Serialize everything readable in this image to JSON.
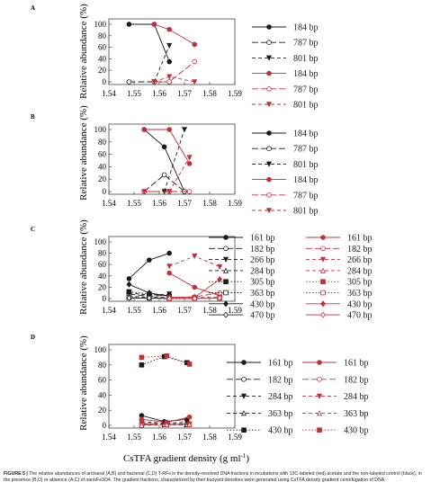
{
  "colors": {
    "black": "#1a1a1a",
    "red": "#c0303a",
    "darkred": "#8b1a1a",
    "grid": "#555555"
  },
  "axis": {
    "ylabel": "Relative abundance (%)",
    "xlabel": "CsTFA gradient density (g ml",
    "xlabel_sup": "-1",
    "xlabel_close": ")"
  },
  "caption": {
    "fig": "FIGURE 5 |",
    "text": "The relative abundances of archaeal (A,B) and bacterial (C,D) T-RFs in the density-resolved DNA fractions in incubations with 13C-labeled (red) acetate and the non-labeled control (black), in the presence (B,D) or absence (A,C) of nanoFe3O4. The gradient fractions, characterized by their buoyant densities were generated using CsTFA density gradient centrifugation of DNA."
  },
  "chart_data": [
    {
      "panel": "A",
      "type": "line",
      "xlim": [
        1.54,
        1.59
      ],
      "ylim": [
        0,
        100
      ],
      "xticks": [
        "1.54",
        "1.55",
        "1.56",
        "1.57",
        "1.58",
        "1.59"
      ],
      "yticks": [
        "0",
        "20",
        "40",
        "60",
        "80",
        "100"
      ],
      "series": [
        {
          "name": "184 bp",
          "color": "black",
          "dash": "solid",
          "marker": "circle-filled",
          "x": [
            1.548,
            1.558,
            1.564
          ],
          "y": [
            100,
            100,
            35
          ]
        },
        {
          "name": "787 bp",
          "color": "black",
          "dash": "longdash",
          "marker": "circle-open",
          "x": [
            1.548,
            1.558,
            1.564
          ],
          "y": [
            0,
            0,
            0
          ]
        },
        {
          "name": "801 bp",
          "color": "black",
          "dash": "dash",
          "marker": "tri-down",
          "x": [
            1.558,
            1.564
          ],
          "y": [
            0,
            63
          ]
        },
        {
          "name": "184 bp",
          "color": "red",
          "dash": "solid",
          "marker": "circle-filled",
          "x": [
            1.558,
            1.564,
            1.574
          ],
          "y": [
            100,
            91,
            65
          ]
        },
        {
          "name": "787 bp",
          "color": "red",
          "dash": "longdash",
          "marker": "circle-open",
          "x": [
            1.558,
            1.564,
            1.574
          ],
          "y": [
            0,
            0,
            35
          ]
        },
        {
          "name": "801 bp",
          "color": "red",
          "dash": "dash",
          "marker": "tri-down",
          "x": [
            1.558,
            1.564,
            1.574
          ],
          "y": [
            0,
            9,
            0
          ]
        }
      ]
    },
    {
      "panel": "B",
      "type": "line",
      "xlim": [
        1.54,
        1.59
      ],
      "ylim": [
        0,
        100
      ],
      "xticks": [
        "1.54",
        "1.55",
        "1.56",
        "1.57",
        "1.58",
        "1.59"
      ],
      "yticks": [
        "0",
        "20",
        "40",
        "60",
        "80",
        "100"
      ],
      "series": [
        {
          "name": "184 bp",
          "color": "black",
          "dash": "solid",
          "marker": "circle-filled",
          "x": [
            1.554,
            1.562,
            1.57
          ],
          "y": [
            100,
            72,
            0
          ]
        },
        {
          "name": "787 bp",
          "color": "black",
          "dash": "longdash",
          "marker": "circle-open",
          "x": [
            1.554,
            1.562,
            1.57
          ],
          "y": [
            0,
            27,
            0
          ]
        },
        {
          "name": "801 bp",
          "color": "black",
          "dash": "dash",
          "marker": "tri-down",
          "x": [
            1.562,
            1.57
          ],
          "y": [
            0,
            100
          ]
        },
        {
          "name": "184 bp",
          "color": "red",
          "dash": "solid",
          "marker": "circle-filled",
          "x": [
            1.554,
            1.564,
            1.572
          ],
          "y": [
            100,
            100,
            45
          ]
        },
        {
          "name": "787 bp",
          "color": "red",
          "dash": "longdash",
          "marker": "circle-open",
          "x": [
            1.554,
            1.564,
            1.572
          ],
          "y": [
            0,
            0,
            0
          ]
        },
        {
          "name": "801 bp",
          "color": "red",
          "dash": "dash",
          "marker": "tri-down",
          "x": [
            1.554,
            1.564,
            1.572
          ],
          "y": [
            0,
            0,
            55
          ]
        }
      ]
    },
    {
      "panel": "C",
      "type": "line",
      "xlim": [
        1.54,
        1.59
      ],
      "ylim": [
        0,
        100
      ],
      "xticks": [
        "1.54",
        "1.55",
        "1.56",
        "1.57",
        "1.58",
        "1.59"
      ],
      "yticks": [
        "0",
        "20",
        "40",
        "60",
        "80",
        "100"
      ],
      "series": [
        {
          "name": "161 bp",
          "color": "black",
          "dash": "solid",
          "marker": "circle-filled",
          "x": [
            1.548,
            1.556,
            1.564
          ],
          "y": [
            35,
            68,
            80
          ]
        },
        {
          "name": "182 bp",
          "color": "black",
          "dash": "longdash",
          "marker": "circle-open",
          "x": [
            1.548,
            1.556,
            1.564
          ],
          "y": [
            8,
            4,
            6
          ]
        },
        {
          "name": "266 bp",
          "color": "black",
          "dash": "dash",
          "marker": "tri-down",
          "x": [
            1.548,
            1.556,
            1.564
          ],
          "y": [
            10,
            6,
            8
          ]
        },
        {
          "name": "284 bp",
          "color": "black",
          "dash": "dash",
          "marker": "tri-up-open",
          "x": [
            1.548,
            1.556,
            1.564
          ],
          "y": [
            4,
            2,
            2
          ]
        },
        {
          "name": "305 bp",
          "color": "black",
          "dash": "dot",
          "marker": "square",
          "x": [
            1.548,
            1.556,
            1.564
          ],
          "y": [
            12,
            8,
            4
          ]
        },
        {
          "name": "363 bp",
          "color": "black",
          "dash": "dot",
          "marker": "square-open",
          "x": [
            1.548,
            1.556,
            1.564
          ],
          "y": [
            2,
            1,
            1
          ]
        },
        {
          "name": "430 bp",
          "color": "black",
          "dash": "solid",
          "marker": "diamond",
          "x": [
            1.548,
            1.556,
            1.564
          ],
          "y": [
            25,
            10,
            4
          ]
        },
        {
          "name": "470 bp",
          "color": "black",
          "dash": "solid",
          "marker": "diamond-open",
          "x": [
            1.548,
            1.556,
            1.564
          ],
          "y": [
            1,
            1,
            0
          ]
        },
        {
          "name": "161 bp",
          "color": "red",
          "dash": "solid",
          "marker": "circle-filled",
          "x": [
            1.564,
            1.574,
            1.584
          ],
          "y": [
            45,
            20,
            5
          ]
        },
        {
          "name": "182 bp",
          "color": "red",
          "dash": "longdash",
          "marker": "circle-open",
          "x": [
            1.564,
            1.574,
            1.584
          ],
          "y": [
            2,
            3,
            10
          ]
        },
        {
          "name": "266 bp",
          "color": "red",
          "dash": "dash",
          "marker": "tri-down",
          "x": [
            1.564,
            1.574,
            1.584
          ],
          "y": [
            57,
            75,
            56
          ]
        },
        {
          "name": "284 bp",
          "color": "red",
          "dash": "dash",
          "marker": "tri-up-open",
          "x": [
            1.564,
            1.574,
            1.584
          ],
          "y": [
            2,
            2,
            2
          ]
        },
        {
          "name": "305 bp",
          "color": "red",
          "dash": "dot",
          "marker": "square",
          "x": [
            1.564,
            1.574,
            1.584
          ],
          "y": [
            1,
            1,
            1
          ]
        },
        {
          "name": "363 bp",
          "color": "red",
          "dash": "dot",
          "marker": "square-open",
          "x": [
            1.564,
            1.574,
            1.584
          ],
          "y": [
            0,
            1,
            1
          ]
        },
        {
          "name": "430 bp",
          "color": "red",
          "dash": "solid",
          "marker": "diamond",
          "x": [
            1.564,
            1.574,
            1.584
          ],
          "y": [
            2,
            2,
            34
          ]
        },
        {
          "name": "470 bp",
          "color": "red",
          "dash": "solid",
          "marker": "diamond-open",
          "x": [
            1.564,
            1.574,
            1.584
          ],
          "y": [
            0,
            0,
            1
          ]
        }
      ]
    },
    {
      "panel": "D",
      "type": "line",
      "xlim": [
        1.54,
        1.59
      ],
      "ylim": [
        0,
        100
      ],
      "xticks": [
        "1.54",
        "1.55",
        "1.56",
        "1.57",
        "1.58",
        "1.59"
      ],
      "yticks": [
        "0",
        "20",
        "40",
        "60",
        "80",
        "100"
      ],
      "series": [
        {
          "name": "161 bp",
          "color": "black",
          "dash": "solid",
          "marker": "circle-filled",
          "x": [
            1.553,
            1.562,
            1.571
          ],
          "y": [
            13,
            5,
            8
          ]
        },
        {
          "name": "182 bp",
          "color": "black",
          "dash": "longdash",
          "marker": "circle-open",
          "x": [
            1.553,
            1.562,
            1.571
          ],
          "y": [
            2,
            1,
            2
          ]
        },
        {
          "name": "284 bp",
          "color": "black",
          "dash": "dash",
          "marker": "tri-down",
          "x": [
            1.553,
            1.562,
            1.571
          ],
          "y": [
            5,
            3,
            4
          ]
        },
        {
          "name": "363 bp",
          "color": "black",
          "dash": "dash",
          "marker": "tri-up-open",
          "x": [
            1.553,
            1.562,
            1.571
          ],
          "y": [
            1,
            1,
            1
          ]
        },
        {
          "name": "430 bp",
          "color": "black",
          "dash": "dot",
          "marker": "square",
          "x": [
            1.553,
            1.562,
            1.571
          ],
          "y": [
            80,
            91,
            83
          ]
        },
        {
          "name": "161 bp",
          "color": "red",
          "dash": "solid",
          "marker": "circle-filled",
          "x": [
            1.553,
            1.563,
            1.572
          ],
          "y": [
            8,
            4,
            11
          ]
        },
        {
          "name": "182 bp",
          "color": "red",
          "dash": "longdash",
          "marker": "circle-open",
          "x": [
            1.553,
            1.563,
            1.572
          ],
          "y": [
            1,
            1,
            1
          ]
        },
        {
          "name": "284 bp",
          "color": "red",
          "dash": "dash",
          "marker": "tri-down",
          "x": [
            1.553,
            1.563,
            1.572
          ],
          "y": [
            3,
            2,
            2
          ]
        },
        {
          "name": "363 bp",
          "color": "red",
          "dash": "dash",
          "marker": "tri-up-open",
          "x": [
            1.553,
            1.563,
            1.572
          ],
          "y": [
            0,
            1,
            1
          ]
        },
        {
          "name": "430 bp",
          "color": "red",
          "dash": "dot",
          "marker": "square",
          "x": [
            1.553,
            1.563,
            1.572
          ],
          "y": [
            90,
            92,
            81
          ]
        }
      ]
    }
  ]
}
